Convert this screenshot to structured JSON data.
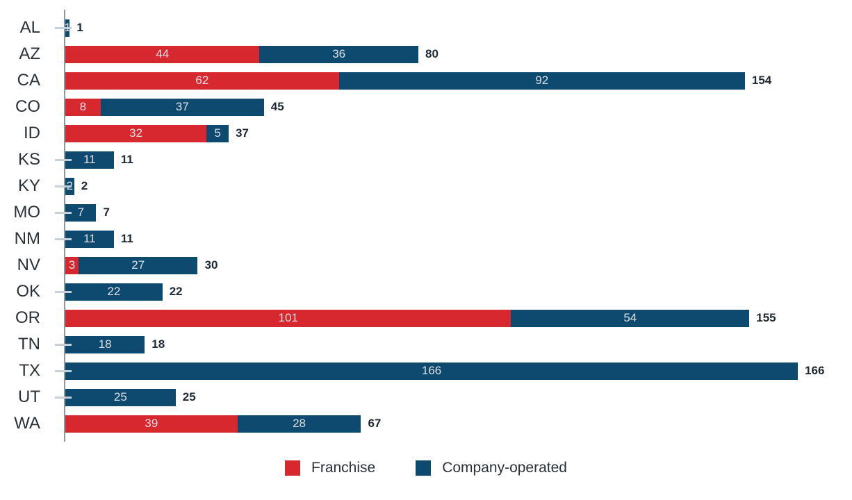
{
  "chart_data": {
    "type": "bar",
    "orientation": "horizontal",
    "stacked": true,
    "title": "",
    "xlabel": "",
    "ylabel": "",
    "grid": false,
    "legend_position": "bottom",
    "categories": [
      "AL",
      "AZ",
      "CA",
      "CO",
      "ID",
      "KS",
      "KY",
      "MO",
      "NM",
      "NV",
      "OK",
      "OR",
      "TN",
      "TX",
      "UT",
      "WA"
    ],
    "series": [
      {
        "name": "Franchise",
        "color": "#D7282F",
        "values": [
          0,
          44,
          62,
          8,
          32,
          0,
          0,
          0,
          0,
          3,
          0,
          101,
          0,
          0,
          0,
          39
        ]
      },
      {
        "name": "Company-operated",
        "color": "#0E4A70",
        "values": [
          1,
          36,
          92,
          37,
          5,
          11,
          2,
          7,
          11,
          27,
          22,
          54,
          18,
          166,
          25,
          28
        ]
      }
    ],
    "totals": [
      1,
      80,
      154,
      45,
      37,
      11,
      2,
      7,
      11,
      30,
      22,
      155,
      18,
      166,
      25,
      67
    ],
    "xlim": [
      0,
      178
    ],
    "zero_value_marker": "dash"
  },
  "styles": {
    "franchise_color": "#D7282F",
    "company_operated_color": "#0E4A70",
    "axis_color": "#90979C",
    "zero_dash_color": "#C6D0D8",
    "inside_label_color": "#DCE0E3",
    "total_label_color": "#1F2933",
    "category_label_color": "#2A3138"
  }
}
